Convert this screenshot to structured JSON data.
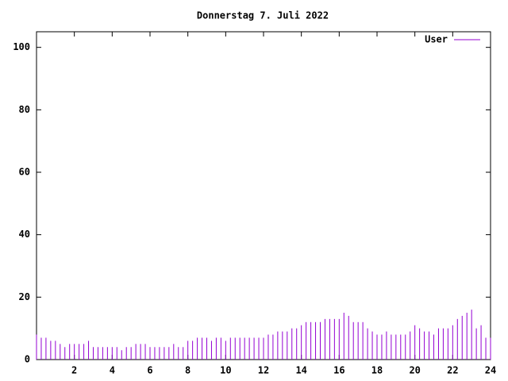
{
  "chart_data": {
    "type": "impulses",
    "title": "Donnerstag 7. Juli 2022",
    "x": [
      0,
      0.25,
      0.5,
      0.75,
      1,
      1.25,
      1.5,
      1.75,
      2,
      2.25,
      2.5,
      2.75,
      3,
      3.25,
      3.5,
      3.75,
      4,
      4.25,
      4.5,
      4.75,
      5,
      5.25,
      5.5,
      5.75,
      6,
      6.25,
      6.5,
      6.75,
      7,
      7.25,
      7.5,
      7.75,
      8,
      8.25,
      8.5,
      8.75,
      9,
      9.25,
      9.5,
      9.75,
      10,
      10.25,
      10.5,
      10.75,
      11,
      11.25,
      11.5,
      11.75,
      12,
      12.25,
      12.5,
      12.75,
      13,
      13.25,
      13.5,
      13.75,
      14,
      14.25,
      14.5,
      14.75,
      15,
      15.25,
      15.5,
      15.75,
      16,
      16.25,
      16.5,
      16.75,
      17,
      17.25,
      17.5,
      17.75,
      18,
      18.25,
      18.5,
      18.75,
      19,
      19.25,
      19.5,
      19.75,
      20,
      20.25,
      20.5,
      20.75,
      21,
      21.25,
      21.5,
      21.75,
      22,
      22.25,
      22.5,
      22.75,
      23,
      23.25,
      23.5,
      23.75,
      24
    ],
    "series": [
      {
        "name": "User",
        "color": "#9400d3",
        "values": [
          8,
          7,
          7,
          6,
          6,
          5,
          4,
          5,
          5,
          5,
          5,
          6,
          4,
          4,
          4,
          4,
          4,
          4,
          3,
          4,
          4,
          5,
          5,
          5,
          4,
          4,
          4,
          4,
          4,
          5,
          4,
          4,
          6,
          6,
          7,
          7,
          7,
          6,
          7,
          7,
          6,
          7,
          7,
          7,
          7,
          7,
          7,
          7,
          7,
          8,
          8,
          9,
          9,
          9,
          10,
          10,
          11,
          12,
          12,
          12,
          12,
          13,
          13,
          13,
          13,
          15,
          14,
          12,
          12,
          12,
          10,
          9,
          8,
          8,
          9,
          8,
          8,
          8,
          8,
          9,
          11,
          10,
          9,
          9,
          8,
          10,
          10,
          10,
          11,
          13,
          14,
          15,
          16,
          10,
          11,
          7,
          7
        ]
      }
    ],
    "xlim": [
      0,
      24
    ],
    "xticks": [
      2,
      4,
      6,
      8,
      10,
      12,
      14,
      16,
      18,
      20,
      22,
      24
    ],
    "ylim": [
      0,
      105
    ],
    "yticks": [
      0,
      20,
      40,
      60,
      80,
      100
    ],
    "legend": "top-right"
  }
}
